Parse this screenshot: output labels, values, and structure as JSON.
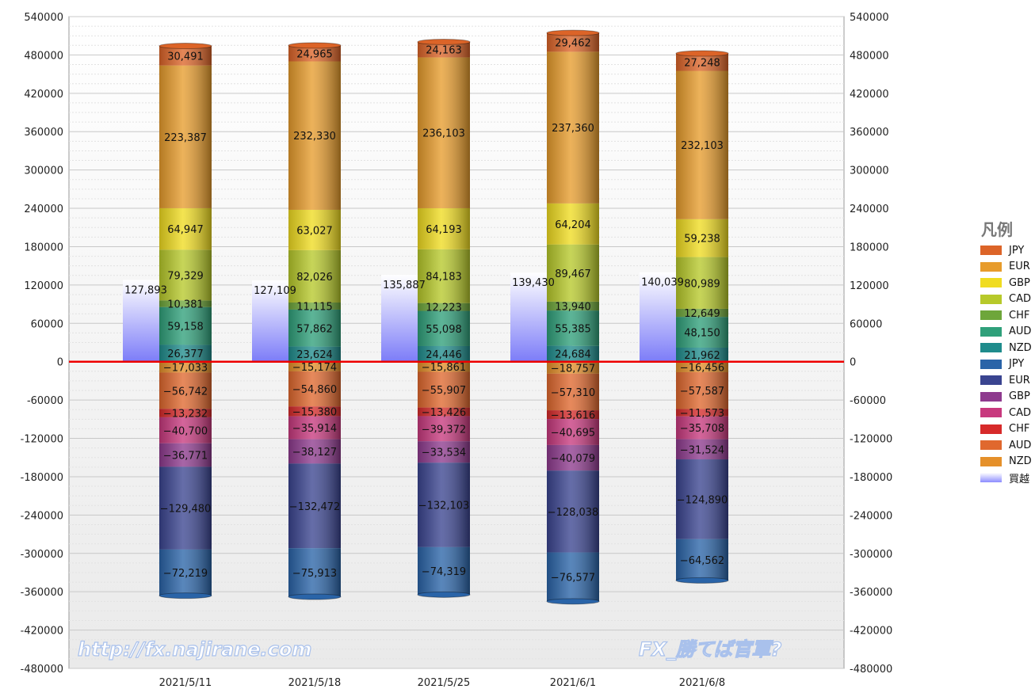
{
  "chart_data": {
    "type": "bar",
    "stacked": true,
    "categories": [
      "2021/5/11",
      "2021/5/18",
      "2021/5/25",
      "2021/6/1",
      "2021/6/8"
    ],
    "ylim": [
      -480000,
      540000
    ],
    "yticks": [
      540000,
      480000,
      420000,
      360000,
      300000,
      240000,
      180000,
      120000,
      60000,
      0,
      -60000,
      -120000,
      -180000,
      -240000,
      -300000,
      -360000,
      -420000,
      -480000
    ],
    "grid": true,
    "legend_title": "凡例",
    "legend_position": "right",
    "positive_series": [
      {
        "name": "NZD",
        "color": "#1f8c8c",
        "values": [
          26377,
          23624,
          24446,
          24684,
          21962
        ]
      },
      {
        "name": "AUD",
        "color": "#2fa07a",
        "values": [
          59158,
          57862,
          55098,
          55385,
          48150
        ]
      },
      {
        "name": "CHF",
        "color": "#6ea63a",
        "values": [
          10381,
          11115,
          12223,
          13940,
          12649
        ]
      },
      {
        "name": "CAD",
        "color": "#b7c92a",
        "values": [
          79329,
          82026,
          84183,
          89467,
          80989
        ]
      },
      {
        "name": "GBP",
        "color": "#f0dc20",
        "values": [
          64947,
          63027,
          64193,
          64204,
          59238
        ]
      },
      {
        "name": "EUR",
        "color": "#e79c2c",
        "values": [
          223387,
          232330,
          236103,
          237360,
          232103
        ]
      },
      {
        "name": "JPY",
        "color": "#dc6428",
        "values": [
          30491,
          24965,
          24163,
          29462,
          27248
        ]
      }
    ],
    "negative_series": [
      {
        "name": "NZD",
        "color": "#e5902a",
        "values": [
          -17033,
          -15174,
          -15861,
          -18757,
          -16456
        ]
      },
      {
        "name": "AUD",
        "color": "#e0682e",
        "values": [
          -56742,
          -54860,
          -55907,
          -57310,
          -57587
        ]
      },
      {
        "name": "CHF",
        "color": "#d72a2a",
        "values": [
          -13232,
          -15380,
          -13426,
          -13616,
          -11573
        ]
      },
      {
        "name": "CAD",
        "color": "#c8397e",
        "values": [
          -40700,
          -35914,
          -39372,
          -40695,
          -35708
        ]
      },
      {
        "name": "GBP",
        "color": "#8e3a8e",
        "values": [
          -36771,
          -38127,
          -33534,
          -40079,
          -31524
        ]
      },
      {
        "name": "EUR",
        "color": "#3a4490",
        "values": [
          -129480,
          -132472,
          -132103,
          -128038,
          -124890
        ]
      },
      {
        "name": "JPY",
        "color": "#2a64a8",
        "values": [
          -72219,
          -75913,
          -74319,
          -76577,
          -64562
        ]
      }
    ],
    "net_series": {
      "name": "買越",
      "color": "#8c8cff",
      "values": [
        127893,
        127109,
        135887,
        139430,
        140039
      ]
    }
  },
  "display": {
    "positive_labels": [
      [
        "26,377",
        "23,624",
        "24,446",
        "24,684",
        "21,962"
      ],
      [
        "59,158",
        "57,862",
        "55,098",
        "55,385",
        "48,150"
      ],
      [
        "10,381",
        "11,115",
        "12,223",
        "13,940",
        "12,649"
      ],
      [
        "79,329",
        "82,026",
        "84,183",
        "89,467",
        "80,989"
      ],
      [
        "64,947",
        "63,027",
        "64,193",
        "64,204",
        "59,238"
      ],
      [
        "223,387",
        "232,330",
        "236,103",
        "237,360",
        "232,103"
      ],
      [
        "30,491",
        "24,965",
        "24,163",
        "29,462",
        "27,248"
      ]
    ],
    "negative_labels": [
      [
        "−17,033",
        "−15,174",
        "−15,861",
        "−18,757",
        "−16,456"
      ],
      [
        "−56,742",
        "−54,860",
        "−55,907",
        "−57,310",
        "−57,587"
      ],
      [
        "−13,232",
        "−15,380",
        "−13,426",
        "−13,616",
        "−11,573"
      ],
      [
        "−40,700",
        "−35,914",
        "−39,372",
        "−40,695",
        "−35,708"
      ],
      [
        "−36,771",
        "−38,127",
        "−33,534",
        "−40,079",
        "−31,524"
      ],
      [
        "−129,480",
        "−132,472",
        "−132,103",
        "−128,038",
        "−124,890"
      ],
      [
        "−72,219",
        "−75,913",
        "−74,319",
        "−76,577",
        "−64,562"
      ]
    ],
    "net_labels": [
      "127,893",
      "127,109",
      "135,887",
      "139,430",
      "140,039"
    ]
  },
  "legend": {
    "title": "凡例",
    "items": [
      {
        "label": "JPY",
        "color": "#dc6428"
      },
      {
        "label": "EUR",
        "color": "#e79c2c"
      },
      {
        "label": "GBP",
        "color": "#f0dc20"
      },
      {
        "label": "CAD",
        "color": "#b7c92a"
      },
      {
        "label": "CHF",
        "color": "#6ea63a"
      },
      {
        "label": "AUD",
        "color": "#2fa07a"
      },
      {
        "label": "NZD",
        "color": "#1f8c8c"
      },
      {
        "label": "JPY",
        "color": "#2a64a8"
      },
      {
        "label": "EUR",
        "color": "#3a4490"
      },
      {
        "label": "GBP",
        "color": "#8e3a8e"
      },
      {
        "label": "CAD",
        "color": "#c8397e"
      },
      {
        "label": "CHF",
        "color": "#d72a2a"
      },
      {
        "label": "AUD",
        "color": "#e0682e"
      },
      {
        "label": "NZD",
        "color": "#e5902a"
      },
      {
        "label": "買越",
        "color": "#8c8cff"
      }
    ]
  },
  "watermarks": {
    "url": "http://fx.najirane.com",
    "slogan": "FX_勝てば官軍?"
  }
}
